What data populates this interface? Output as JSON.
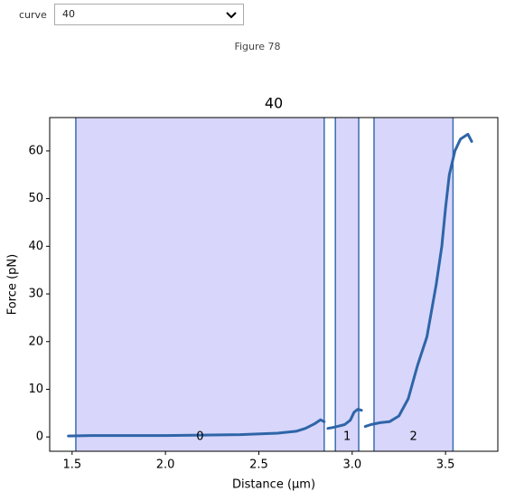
{
  "widget": {
    "label": "curve",
    "value": "40"
  },
  "figure_label": "Figure 78",
  "chart_data": {
    "type": "line",
    "title": "40",
    "x_label": "Distance (μm)",
    "y_label": "Force (pN)",
    "x": [
      1.48,
      1.6,
      1.8,
      2.0,
      2.2,
      2.4,
      2.6,
      2.7,
      2.75,
      2.8,
      2.83,
      2.85,
      2.865,
      2.87,
      2.9,
      2.93,
      2.96,
      2.99,
      3.01,
      3.03,
      3.05,
      3.06,
      3.07,
      3.1,
      3.15,
      3.2,
      3.25,
      3.3,
      3.35,
      3.4,
      3.45,
      3.48,
      3.5,
      3.52,
      3.55,
      3.58,
      3.62,
      3.64
    ],
    "values": [
      0.2,
      0.3,
      0.3,
      0.3,
      0.4,
      0.5,
      0.8,
      1.2,
      1.8,
      2.8,
      3.6,
      3.2,
      null,
      1.8,
      2.0,
      2.3,
      2.6,
      3.5,
      5.2,
      5.8,
      5.6,
      null,
      2.2,
      2.6,
      3.0,
      3.2,
      4.4,
      8,
      15,
      21,
      32,
      40,
      48,
      55,
      60,
      62.5,
      63.5,
      62
    ],
    "color": "#2f65a8",
    "spans": [
      {
        "label": "0",
        "range": [
          1.52,
          2.85
        ]
      },
      {
        "label": "1",
        "range": [
          2.91,
          3.035
        ]
      },
      {
        "label": "2",
        "range": [
          3.117,
          3.54
        ]
      }
    ],
    "span_color": "#d8d6fb",
    "span_edge_color": "#3a6db0",
    "xlim": [
      1.38,
      3.78
    ],
    "ylim": [
      -3,
      67
    ],
    "xticks": [
      1.5,
      {
        "value": 2,
        "label": "2.0"
      },
      2.5,
      {
        "value": 3,
        "label": "3.0"
      },
      3.5
    ],
    "yticks": [
      0,
      10,
      20,
      30,
      40,
      50,
      60
    ]
  }
}
